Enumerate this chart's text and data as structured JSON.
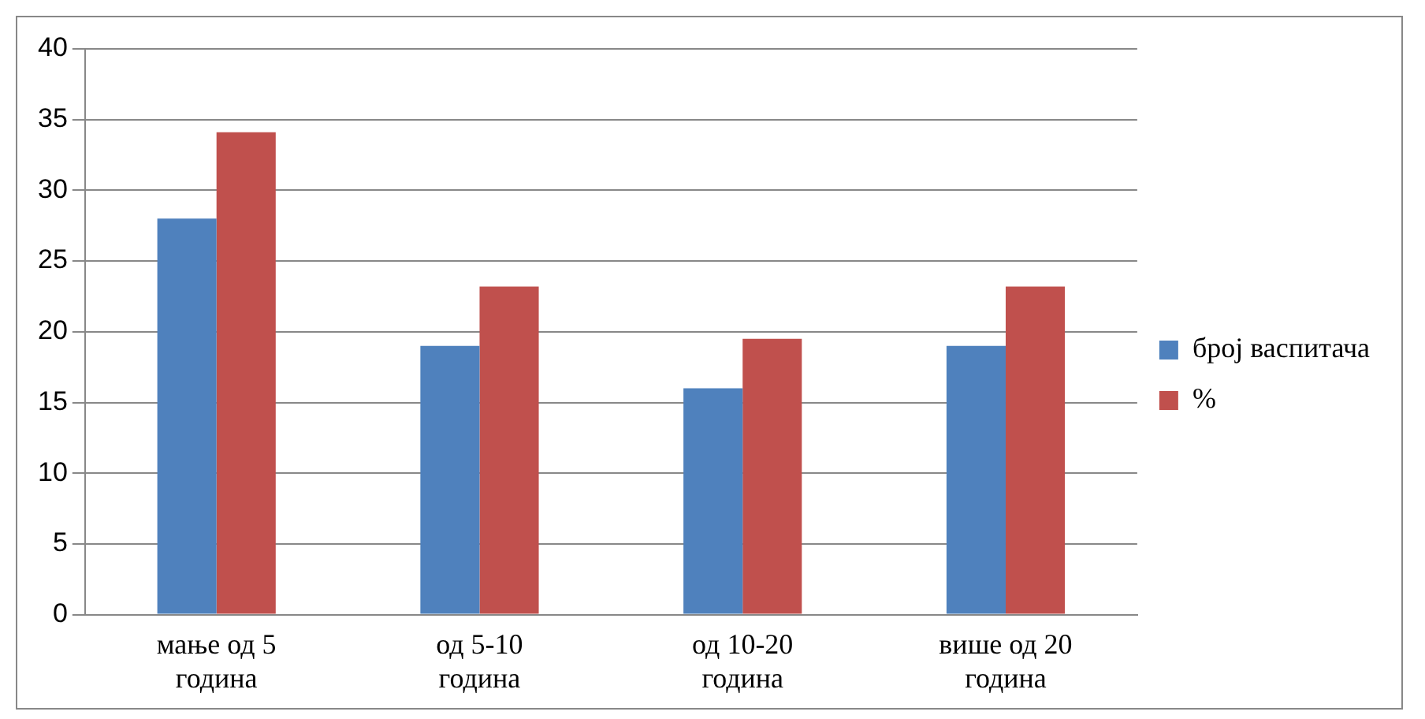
{
  "chart_data": {
    "type": "bar",
    "categories": [
      "мање од 5 година",
      "од 5-10 година",
      "од 10-20 година",
      "више од 20 година"
    ],
    "series": [
      {
        "name": "број васпитача",
        "color": "#4f81bd",
        "values": [
          28,
          19,
          16,
          19
        ]
      },
      {
        "name": "%",
        "color": "#c0504d",
        "values": [
          34.1,
          23.2,
          19.5,
          23.2
        ]
      }
    ],
    "ylim": [
      0,
      40
    ],
    "yticks": [
      0,
      5,
      10,
      15,
      20,
      25,
      30,
      35,
      40
    ],
    "grid": "y",
    "legend": "right"
  }
}
